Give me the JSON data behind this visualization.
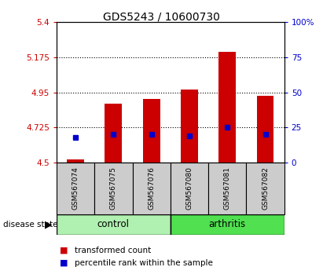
{
  "title": "GDS5243 / 10600730",
  "samples": [
    "GSM567074",
    "GSM567075",
    "GSM567076",
    "GSM567080",
    "GSM567081",
    "GSM567082"
  ],
  "transformed_count": [
    4.52,
    4.88,
    4.91,
    4.97,
    5.21,
    4.93
  ],
  "percentile_rank": [
    18,
    20,
    20,
    19,
    25,
    20
  ],
  "ylim_left": [
    4.5,
    5.4
  ],
  "yticks_left": [
    4.5,
    4.725,
    4.95,
    5.175,
    5.4
  ],
  "ytick_labels_left": [
    "4.5",
    "4.725",
    "4.95",
    "5.175",
    "5.4"
  ],
  "ylim_right": [
    0,
    100
  ],
  "yticks_right": [
    0,
    25,
    50,
    75,
    100
  ],
  "ytick_labels_right": [
    "0",
    "25",
    "50",
    "75",
    "100%"
  ],
  "bar_color": "#cc0000",
  "dot_color": "#0000cc",
  "bar_width": 0.45,
  "control_color": "#b0f0b0",
  "arthritis_color": "#50e050",
  "left_tick_color": "#cc0000",
  "right_tick_color": "#0000cc",
  "background_color": "#ffffff",
  "sample_box_color": "#cccccc",
  "n_control": 3,
  "n_arthritis": 3
}
